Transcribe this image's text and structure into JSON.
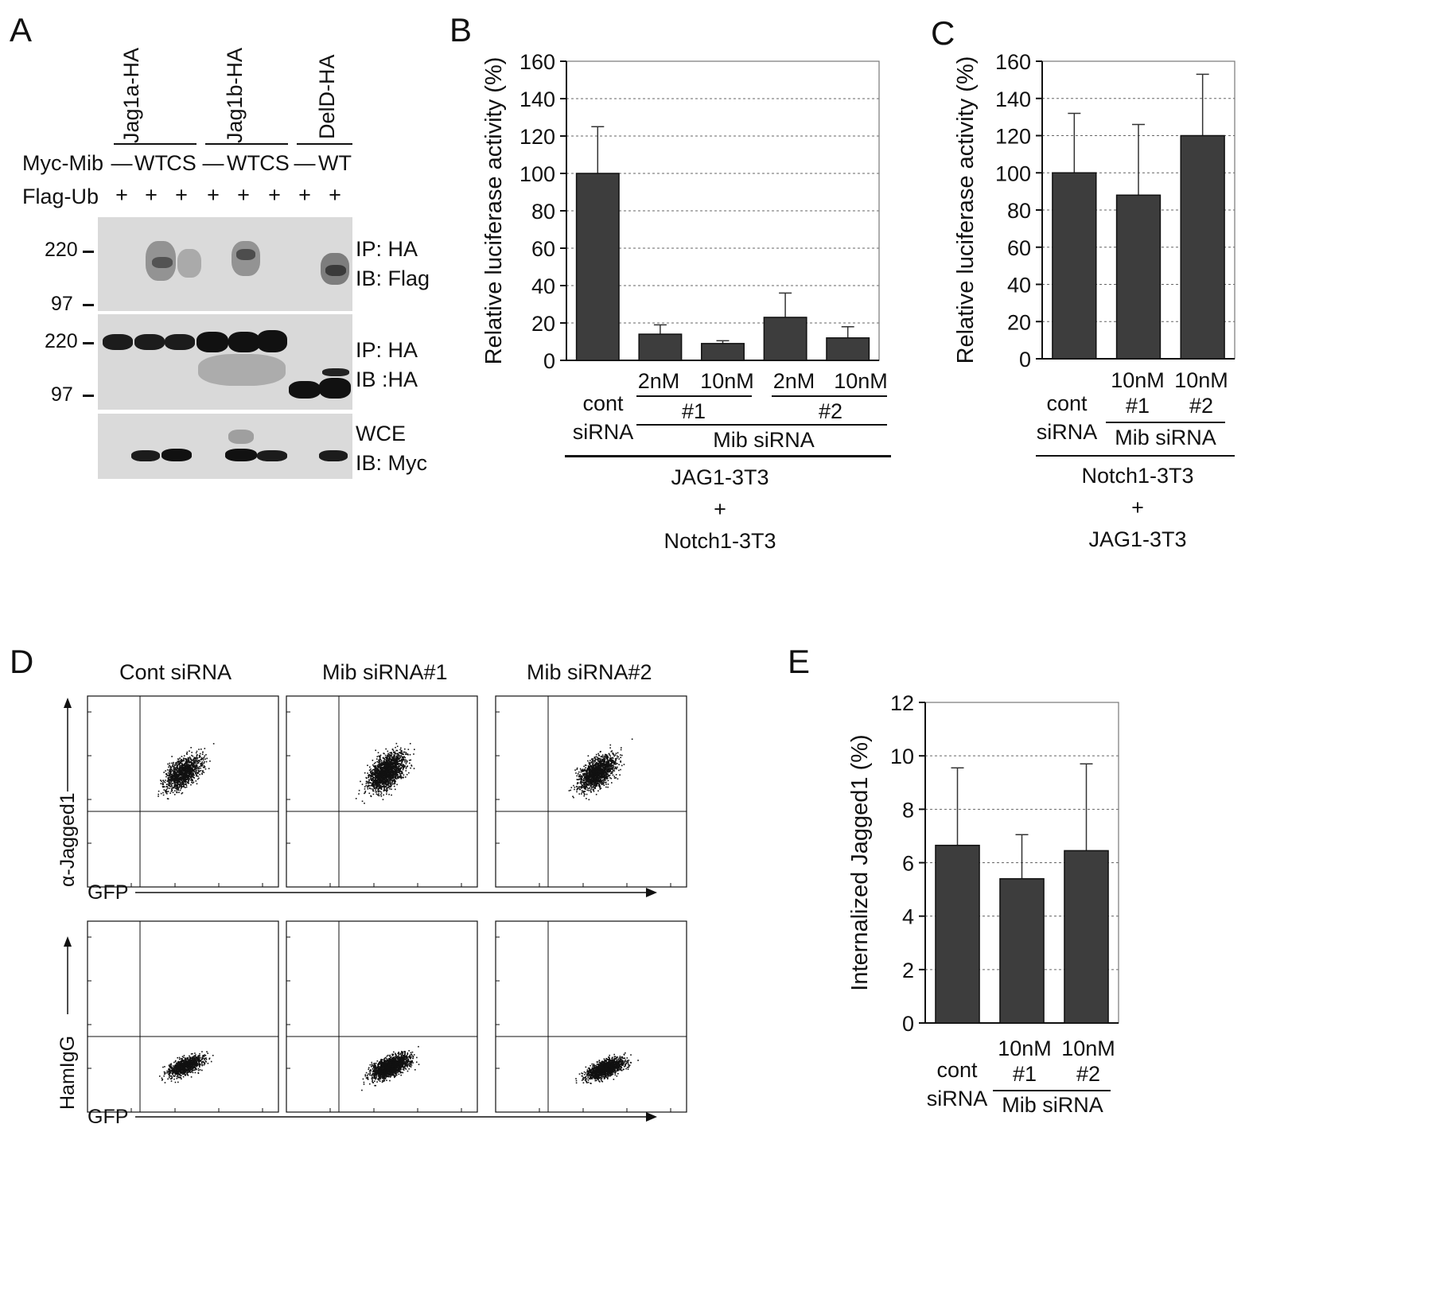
{
  "panels": {
    "A": {
      "letter": "A",
      "constructs": [
        "Jag1a-HA",
        "Jag1b-HA",
        "DelD-HA"
      ],
      "myc_label": "Myc-Mib",
      "myc_values": [
        "—",
        "WT",
        "CS",
        "—",
        "WT",
        "CS",
        "—",
        "WT"
      ],
      "flag_label": "Flag-Ub",
      "flag_values": [
        "+",
        "+",
        "+",
        "+",
        "+",
        "+",
        "+",
        "+"
      ],
      "markers_top": [
        "220",
        "97"
      ],
      "markers_mid": [
        "220",
        "97"
      ],
      "blot1_label": [
        "IP: HA",
        "IB: Flag"
      ],
      "blot2_label": [
        "IP: HA",
        "IB :HA"
      ],
      "blot3_label": [
        "WCE",
        "IB: Myc"
      ]
    },
    "B": {
      "letter": "B",
      "dose_labels": [
        "2nM",
        "10nM",
        "2nM",
        "10nM"
      ],
      "cont_label": [
        "cont",
        "siRNA"
      ],
      "group1": "#1",
      "group2": "#2",
      "mib_label": "Mib siRNA",
      "cond_lines": [
        "JAG1-3T3",
        "+",
        "Notch1-3T3"
      ]
    },
    "C": {
      "letter": "C",
      "cont_label": [
        "cont",
        "siRNA"
      ],
      "bar_labels": [
        [
          "10nM",
          "#1"
        ],
        [
          "10nM",
          "#2"
        ]
      ],
      "mib_label": "Mib siRNA",
      "cond_lines": [
        "Notch1-3T3",
        "+",
        "JAG1-3T3"
      ]
    },
    "D": {
      "letter": "D",
      "column_titles": [
        "Cont siRNA",
        "Mib siRNA#1",
        "Mib siRNA#2"
      ],
      "row1_ylabel": "α-Jagged1",
      "row2_ylabel": "HamIgG",
      "xlabel": "GFP"
    },
    "E": {
      "letter": "E",
      "cont_label": [
        "cont",
        "siRNA"
      ],
      "bar_labels": [
        [
          "10nM",
          "#1"
        ],
        [
          "10nM",
          "#2"
        ]
      ],
      "mib_label": "Mib siRNA"
    }
  },
  "chart_data": [
    {
      "panel": "B",
      "type": "bar",
      "ylabel": "Relative luciferase activity (%)",
      "ylim": [
        0,
        160
      ],
      "yticks": [
        0,
        20,
        40,
        60,
        80,
        100,
        120,
        140,
        160
      ],
      "grid": true,
      "categories": [
        "cont siRNA",
        "Mib siRNA #1 2nM",
        "Mib siRNA #1 10nM",
        "Mib siRNA #2 2nM",
        "Mib siRNA #2 10nM"
      ],
      "values": [
        100,
        14,
        9,
        23,
        12
      ],
      "errors": [
        25,
        5,
        1.5,
        13,
        6
      ],
      "bar_color": "#3d3d3d"
    },
    {
      "panel": "C",
      "type": "bar",
      "ylabel": "Relative luciferase activity (%)",
      "ylim": [
        0,
        160
      ],
      "yticks": [
        0,
        20,
        40,
        60,
        80,
        100,
        120,
        140,
        160
      ],
      "grid": true,
      "categories": [
        "cont siRNA",
        "Mib siRNA 10nM #1",
        "Mib siRNA 10nM #2"
      ],
      "values": [
        100,
        88,
        120
      ],
      "errors": [
        32,
        38,
        33
      ],
      "bar_color": "#3d3d3d"
    },
    {
      "panel": "E",
      "type": "bar",
      "ylabel": "Internalized  Jagged1  (%)",
      "ylim": [
        0,
        12
      ],
      "yticks": [
        0,
        2,
        4,
        6,
        8,
        10,
        12
      ],
      "grid": true,
      "categories": [
        "cont siRNA",
        "Mib siRNA 10nM #1",
        "Mib siRNA 10nM #2"
      ],
      "values": [
        6.65,
        5.4,
        6.45
      ],
      "errors": [
        2.9,
        1.65,
        3.25
      ],
      "bar_color": "#3d3d3d"
    }
  ]
}
